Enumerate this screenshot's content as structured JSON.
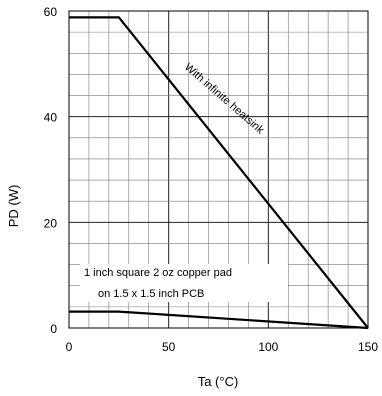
{
  "chart_data": {
    "type": "line",
    "title": "",
    "xlabel": "Ta  (°C)",
    "ylabel": "PD  (W)",
    "xlim": [
      0,
      150
    ],
    "ylim": [
      0,
      60
    ],
    "x_ticks": [
      "0",
      "50",
      "100",
      "150"
    ],
    "y_ticks": [
      "0",
      "20",
      "40",
      "60"
    ],
    "grid": true,
    "minor_grid": true,
    "series": [
      {
        "x": [
          0,
          25,
          150
        ],
        "y": [
          58.8,
          58.8,
          0
        ]
      },
      {
        "x": [
          0,
          25,
          150
        ],
        "y": [
          3.1,
          3.1,
          0
        ]
      }
    ],
    "annotations": [
      {
        "text": "With infinite heatsink"
      },
      {
        "text": "1 inch square 2 oz copper pad"
      },
      {
        "text": "on  1.5 x 1.5 inch PCB"
      }
    ]
  }
}
